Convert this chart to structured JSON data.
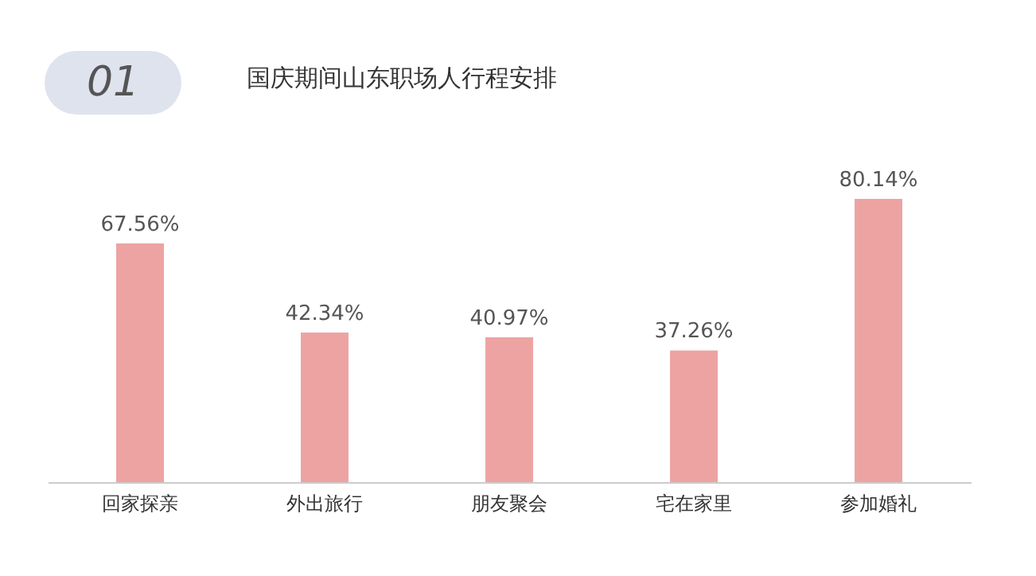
{
  "chart_data": {
    "type": "bar",
    "title": "国庆期间山东职场人行程安排",
    "annotations": [
      "01"
    ],
    "categories": [
      "回家探亲",
      "外出旅行",
      "朋友聚会",
      "宅在家里",
      "参加婚礼"
    ],
    "values": [
      67.56,
      42.34,
      40.97,
      37.26,
      80.14
    ],
    "value_labels": [
      "67.56%",
      "42.34%",
      "40.97%",
      "37.26%",
      "80.14%"
    ],
    "color": "#eea3a3"
  }
}
